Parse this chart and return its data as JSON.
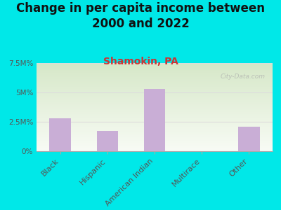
{
  "title": "Change in per capita income between\n2000 and 2022",
  "subtitle": "Shamokin, PA",
  "categories": [
    "Black",
    "Hispanic",
    "American Indian",
    "Multirace",
    "Other"
  ],
  "values": [
    2.8,
    1.7,
    5.3,
    0.0,
    2.1
  ],
  "bar_color": "#c9aed6",
  "title_fontsize": 12,
  "subtitle_fontsize": 10,
  "subtitle_color": "#cc3333",
  "title_color": "#111111",
  "background_color": "#00e8e8",
  "plot_bg_top_left": "#d6e8c8",
  "plot_bg_bottom_right": "#f8fbf5",
  "ylim": [
    0,
    7.5
  ],
  "yticks": [
    0,
    2.5,
    5.0,
    7.5
  ],
  "ytick_labels": [
    "0%",
    "2.5M%",
    "5M%",
    "7.5M%"
  ],
  "watermark": "City-Data.com",
  "grid_color": "#e0e8d8"
}
